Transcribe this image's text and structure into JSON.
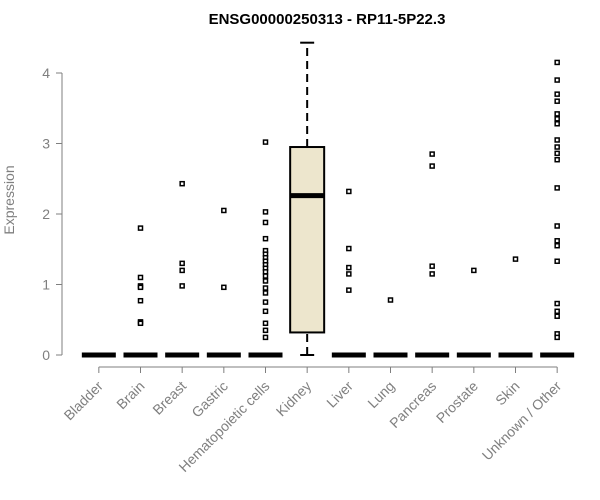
{
  "chart_data": {
    "type": "boxplot",
    "title": "ENSG00000250313 - RP11-5P22.3",
    "ylabel": "Expression",
    "xlabel": "",
    "ylim": [
      0,
      4.3
    ],
    "yticks": [
      0,
      1,
      2,
      3,
      4
    ],
    "grid": false,
    "categories": [
      "Bladder",
      "Brain",
      "Breast",
      "Gastric",
      "Hematopoietic cells",
      "Kidney",
      "Liver",
      "Lung",
      "Pancreas",
      "Prostate",
      "Skin",
      "Unknown / Other"
    ],
    "box_fill": "#ede6cd",
    "boxes": [
      {
        "category": "Bladder",
        "min": 0,
        "q1": 0,
        "median": 0,
        "q3": 0,
        "max": 0,
        "outliers": []
      },
      {
        "category": "Brain",
        "min": 0,
        "q1": 0,
        "median": 0,
        "q3": 0,
        "max": 0,
        "outliers": [
          1.8,
          1.1,
          0.98,
          0.96,
          0.77,
          0.47,
          0.45
        ]
      },
      {
        "category": "Breast",
        "min": 0,
        "q1": 0,
        "median": 0,
        "q3": 0,
        "max": 0,
        "outliers": [
          2.43,
          1.3,
          1.2,
          0.98
        ]
      },
      {
        "category": "Gastric",
        "min": 0,
        "q1": 0,
        "median": 0,
        "q3": 0,
        "max": 0,
        "outliers": [
          2.05,
          0.96
        ]
      },
      {
        "category": "Hematopoietic cells",
        "min": 0,
        "q1": 0,
        "median": 0,
        "q3": 0,
        "max": 0,
        "outliers": [
          3.02,
          2.03,
          1.88,
          1.65,
          1.48,
          1.43,
          1.38,
          1.33,
          1.28,
          1.23,
          1.18,
          1.12,
          1.05,
          0.95,
          0.88,
          0.75,
          0.62,
          0.45,
          0.35,
          0.25
        ]
      },
      {
        "category": "Kidney",
        "min": 0,
        "q1": 0.32,
        "median": 2.26,
        "q3": 2.95,
        "max": 4.43,
        "outliers": []
      },
      {
        "category": "Liver",
        "min": 0,
        "q1": 0,
        "median": 0,
        "q3": 0,
        "max": 0,
        "outliers": [
          2.32,
          1.51,
          1.24,
          1.15,
          0.92
        ]
      },
      {
        "category": "Lung",
        "min": 0,
        "q1": 0,
        "median": 0,
        "q3": 0,
        "max": 0,
        "outliers": [
          0.78
        ]
      },
      {
        "category": "Pancreas",
        "min": 0,
        "q1": 0,
        "median": 0,
        "q3": 0,
        "max": 0,
        "outliers": [
          2.85,
          2.68,
          1.26,
          1.15
        ]
      },
      {
        "category": "Prostate",
        "min": 0,
        "q1": 0,
        "median": 0,
        "q3": 0,
        "max": 0,
        "outliers": [
          1.2
        ]
      },
      {
        "category": "Skin",
        "min": 0,
        "q1": 0,
        "median": 0,
        "q3": 0,
        "max": 0,
        "outliers": [
          1.36
        ]
      },
      {
        "category": "Unknown / Other",
        "min": 0,
        "q1": 0,
        "median": 0,
        "q3": 0,
        "max": 0,
        "outliers": [
          4.15,
          3.9,
          3.7,
          3.6,
          3.42,
          3.35,
          3.28,
          3.05,
          2.95,
          2.86,
          2.77,
          2.37,
          1.83,
          1.62,
          1.55,
          1.33,
          0.73,
          0.62,
          0.55,
          0.3,
          0.25
        ]
      }
    ]
  }
}
